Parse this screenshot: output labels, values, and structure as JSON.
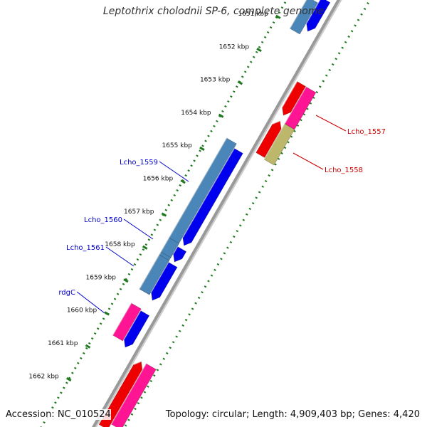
{
  "title": "Leptothrix cholodnii SP-6, complete genome",
  "footer": {
    "accession": "Accession: NC_010524",
    "summary": "Topology: circular; Length: 4,909,403 bp; Genes: 4,420"
  },
  "colors": {
    "backbone": "#999999",
    "tick_ring": "#1f7a1f",
    "fwd_cds": "#4a86b8",
    "fwd_gene": "#0000ee",
    "rev_cds": "#ff1493",
    "rev_gene": "#ee0000",
    "rev_other": "#bdb76b",
    "label_fwd": "#0000cc",
    "label_rev": "#cc0000"
  },
  "ticks": [
    "1651 kbp",
    "1652 kbp",
    "1653 kbp",
    "1654 kbp",
    "1655 kbp",
    "1656 kbp",
    "1657 kbp",
    "1658 kbp",
    "1659 kbp",
    "1660 kbp",
    "1661 kbp",
    "1662 kbp"
  ],
  "gene_labels": [
    {
      "name": "Lcho_1557",
      "strand": "reverse"
    },
    {
      "name": "Lcho_1558",
      "strand": "reverse"
    },
    {
      "name": "Lcho_1559",
      "strand": "forward"
    },
    {
      "name": "Lcho_1560",
      "strand": "forward"
    },
    {
      "name": "Lcho_1561",
      "strand": "forward"
    },
    {
      "name": "rdgC",
      "strand": "forward"
    }
  ]
}
